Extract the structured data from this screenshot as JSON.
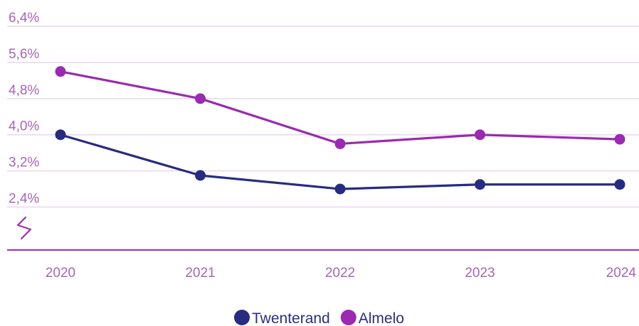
{
  "colors": {
    "axis": "#9b30b0",
    "tick_text": "#a864b8",
    "grid": "#ecd5ef",
    "legend_text": "#2b2f7a"
  },
  "axis_break_icon": "zigzag-break-icon",
  "chart_data": {
    "type": "line",
    "x": [
      "2020",
      "2021",
      "2022",
      "2023",
      "2024"
    ],
    "y_ticks": [
      "6,4%",
      "5,6%",
      "4,8%",
      "4,0%",
      "3,2%",
      "2,4%"
    ],
    "y_tick_values": [
      6.4,
      5.6,
      4.8,
      4.0,
      3.2,
      2.4
    ],
    "ylim": [
      1.45,
      6.4
    ],
    "y_axis_break": true,
    "grid": true,
    "legend_position": "bottom-center",
    "series": [
      {
        "name": "Twenterand",
        "color": "#272c7f",
        "values": [
          4.0,
          3.1,
          2.8,
          2.9,
          2.9
        ]
      },
      {
        "name": "Almelo",
        "color": "#9a2ab0",
        "values": [
          5.4,
          4.8,
          3.8,
          4.0,
          3.9
        ]
      }
    ]
  }
}
